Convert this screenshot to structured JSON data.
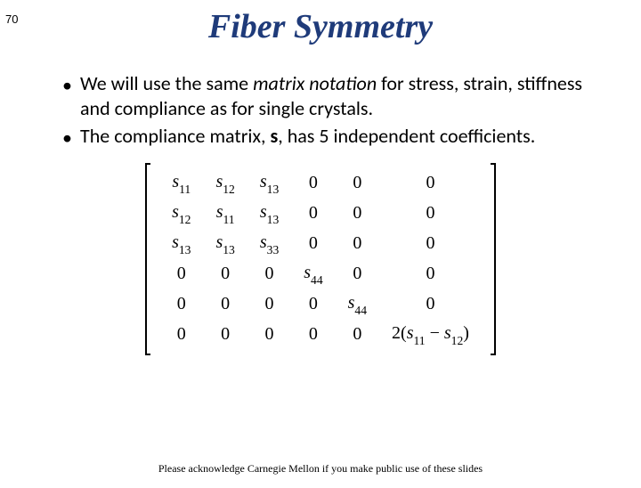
{
  "pageNumber": "70",
  "title": "Fiber Symmetry",
  "bullets": {
    "b1_pre": "We will use the same ",
    "b1_em": "matrix notation",
    "b1_post": " for stress, strain, stiffness and compliance as for single crystals.",
    "b2_pre": "The compliance matrix, ",
    "b2_bold": "s",
    "b2_post": ", has 5 independent coefficients."
  },
  "matrix": {
    "rows": [
      [
        {
          "s": "s",
          "sub": "11"
        },
        {
          "s": "s",
          "sub": "12"
        },
        {
          "s": "s",
          "sub": "13"
        },
        {
          "z": "0"
        },
        {
          "z": "0"
        },
        {
          "z": "0"
        }
      ],
      [
        {
          "s": "s",
          "sub": "12"
        },
        {
          "s": "s",
          "sub": "11"
        },
        {
          "s": "s",
          "sub": "13"
        },
        {
          "z": "0"
        },
        {
          "z": "0"
        },
        {
          "z": "0"
        }
      ],
      [
        {
          "s": "s",
          "sub": "13"
        },
        {
          "s": "s",
          "sub": "13"
        },
        {
          "s": "s",
          "sub": "33"
        },
        {
          "z": "0"
        },
        {
          "z": "0"
        },
        {
          "z": "0"
        }
      ],
      [
        {
          "z": "0"
        },
        {
          "z": "0"
        },
        {
          "z": "0"
        },
        {
          "s": "s",
          "sub": "44"
        },
        {
          "z": "0"
        },
        {
          "z": "0"
        }
      ],
      [
        {
          "z": "0"
        },
        {
          "z": "0"
        },
        {
          "z": "0"
        },
        {
          "z": "0"
        },
        {
          "s": "s",
          "sub": "44"
        },
        {
          "z": "0"
        }
      ],
      [
        {
          "z": "0"
        },
        {
          "z": "0"
        },
        {
          "z": "0"
        },
        {
          "z": "0"
        },
        {
          "z": "0"
        },
        {
          "expr": {
            "lead": "2(",
            "a": "s",
            "asub": "11",
            "mid": " − ",
            "b": "s",
            "bsub": "12",
            "tail": ")"
          }
        }
      ]
    ]
  },
  "footer": "Please acknowledge Carnegie Mellon if you make public use of these slides"
}
